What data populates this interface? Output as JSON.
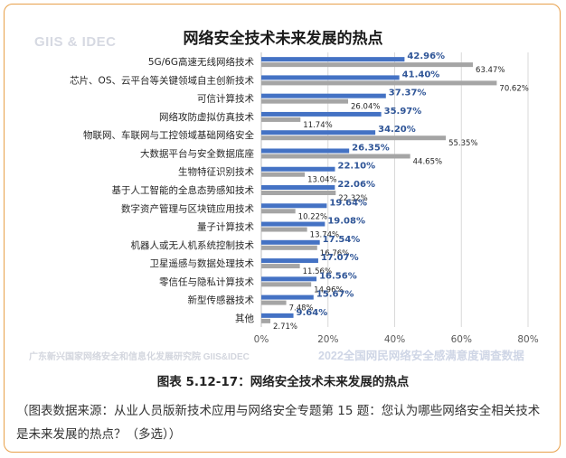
{
  "watermarks": {
    "top_left": "GIIS & IDEC",
    "bottom_left": "广东新兴国家网络安全和信息化发展研究院  GIIS&IDEC",
    "bottom_right": "2022全国网民网络安全感满意度调查数据"
  },
  "caption": "图表 5.12-17：网络安全技术未来发展的热点",
  "source_note": "（图表数据来源：从业人员版新技术应用与网络安全专题第 15 题：您认为哪些网络安全相关技术是未来发展的热点？（多选））",
  "colors": {
    "blue": "#4472c4",
    "gray": "#a5a5a5",
    "blue_label": "#2f5597",
    "border": "#e8a04a"
  },
  "chart_data": {
    "type": "bar",
    "orientation": "horizontal",
    "title": "网络安全技术未来发展的热点",
    "categories": [
      "5G/6G高速无线网络技术",
      "芯片、OS、云平台等关键领域自主创新技术",
      "可信计算技术",
      "网络攻防虚拟仿真技术",
      "物联网、车联网与工控领域基础网络安全",
      "大数据平台与安全数据底座",
      "生物特征识别技术",
      "基于人工智能的全息态势感知技术",
      "数字资产管理与区块链应用技术",
      "量子计算技术",
      "机器人或无人机系统控制技术",
      "卫星遥感与数据处理技术",
      "零信任与隐私计算技术",
      "新型传感器技术",
      "其他"
    ],
    "series": [
      {
        "color": "#4472c4",
        "values": [
          42.96,
          41.4,
          37.37,
          35.97,
          34.2,
          26.35,
          22.1,
          22.06,
          19.64,
          19.08,
          17.54,
          17.07,
          16.56,
          15.67,
          9.64
        ],
        "labels": [
          "42.96%",
          "41.40%",
          "37.37%",
          "35.97%",
          "34.20%",
          "26.35%",
          "22.10%",
          "22.06%",
          "19.64%",
          "19.08%",
          "17.54%",
          "17.07%",
          "16.56%",
          "15.67%",
          "9.64%"
        ]
      },
      {
        "color": "#a5a5a5",
        "values": [
          63.47,
          70.62,
          26.04,
          11.74,
          55.35,
          44.65,
          13.04,
          22.32,
          10.22,
          13.74,
          16.76,
          11.56,
          14.96,
          7.48,
          2.71
        ],
        "labels": [
          "63.47%",
          "70.62%",
          "26.04%",
          "11.74%",
          "55.35%",
          "44.65%",
          "13.04%",
          "22.32%",
          "10.22%",
          "13.74%",
          "16.76%",
          "11.56%",
          "14.96%",
          "7.48%",
          "2.71%"
        ]
      }
    ],
    "xlim": [
      0,
      80
    ],
    "xticks": [
      "0%",
      "20%",
      "40%",
      "60%",
      "80%"
    ],
    "grid": true
  }
}
